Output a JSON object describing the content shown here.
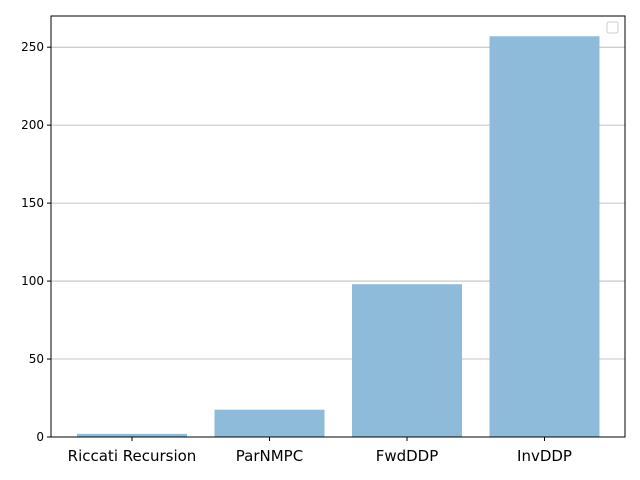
{
  "chart_data": {
    "type": "bar",
    "title": "",
    "xlabel": "",
    "ylabel": "",
    "categories": [
      "Riccati Recursion",
      "ParNMPC",
      "FwdDDP",
      "InvDDP"
    ],
    "values": [
      2,
      17.5,
      98,
      257
    ],
    "ylim": [
      0,
      270
    ],
    "yticks": [
      0,
      50,
      100,
      150,
      200,
      250
    ],
    "grid": "y-major",
    "legend": "top-right, empty",
    "bar_color": "#8fbbda",
    "grid_color": "#b0b0b0"
  }
}
